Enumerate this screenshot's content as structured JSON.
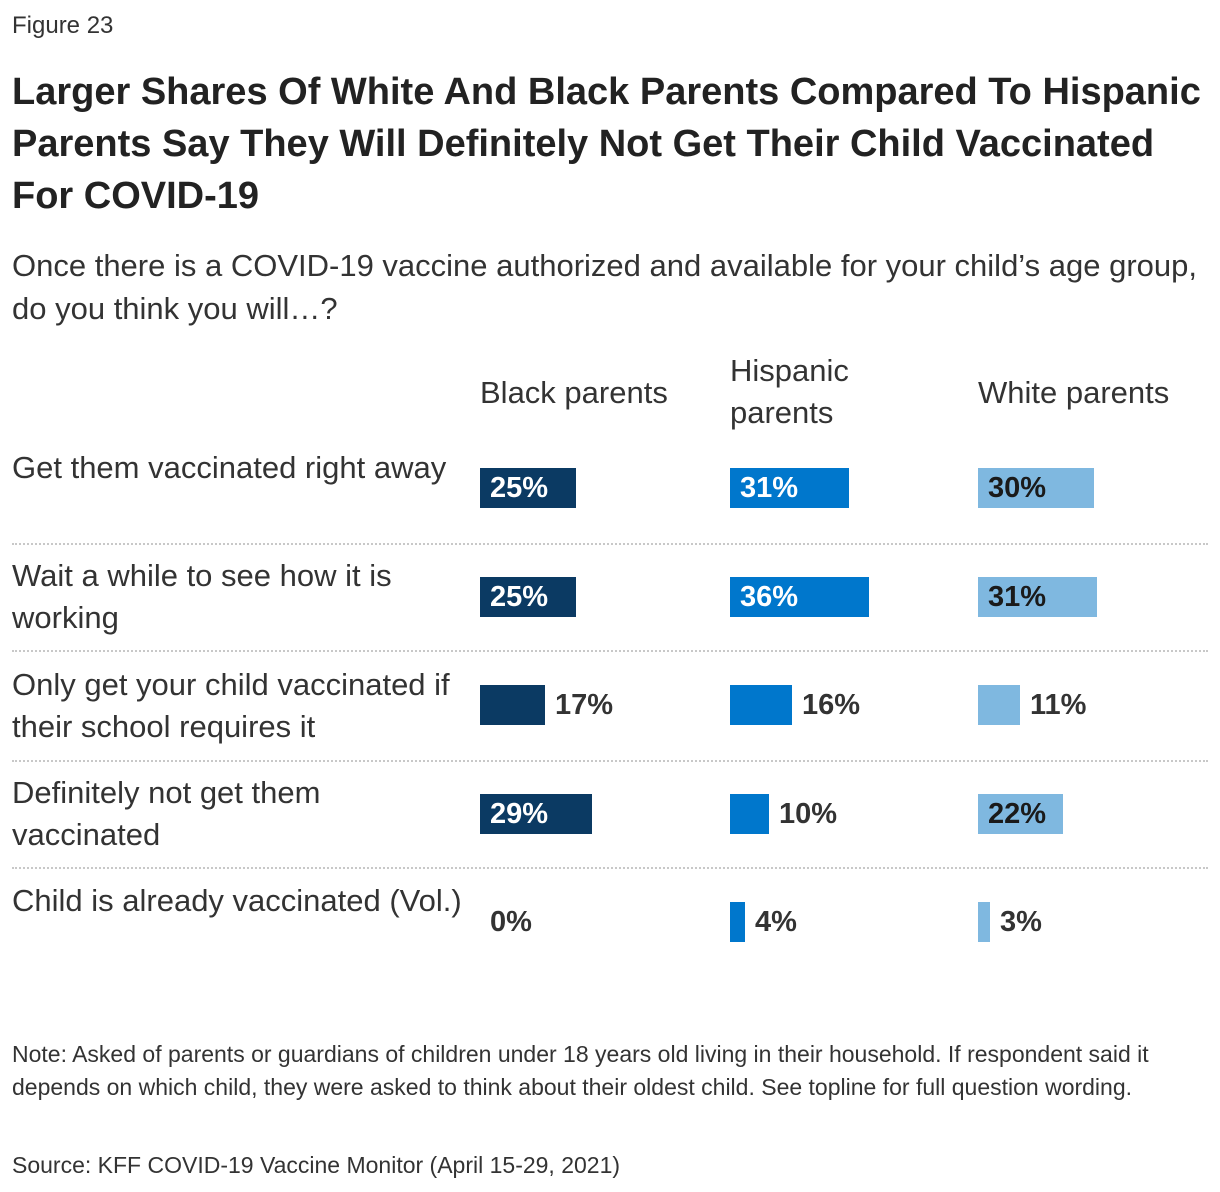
{
  "figure_label": "Figure 23",
  "title": "Larger Shares Of White And Black Parents Compared To Hispanic Parents Say They Will Definitely Not Get Their Child Vaccinated For COVID-19",
  "subtitle": "Once there is a COVID-19 vaccine authorized and available for your child’s age group, do you think you will…?",
  "colors": {
    "black_parents": "#0b3a63",
    "hispanic_parents": "#0077cc",
    "white_parents": "#7fb8e0"
  },
  "chart_data": {
    "type": "bar",
    "orientation": "horizontal",
    "title": "Larger Shares Of White And Black Parents Compared To Hispanic Parents Say They Will Definitely Not Get Their Child Vaccinated For COVID-19",
    "categories": [
      "Get them vaccinated right away",
      "Wait a while to see how it is working",
      "Only get your child vaccinated if their school requires it",
      "Definitely not get them vaccinated",
      "Child is already vaccinated (Vol.)"
    ],
    "series": [
      {
        "name": "Black parents",
        "values": [
          25,
          25,
          17,
          29,
          0
        ],
        "labels": [
          "25%",
          "25%",
          "17%",
          "29%",
          "0%"
        ]
      },
      {
        "name": "Hispanic parents",
        "values": [
          31,
          36,
          16,
          10,
          4
        ],
        "labels": [
          "31%",
          "36%",
          "16%",
          "10%",
          "4%"
        ]
      },
      {
        "name": "White parents",
        "values": [
          30,
          31,
          11,
          22,
          3
        ],
        "labels": [
          "30%",
          "31%",
          "11%",
          "22%",
          "3%"
        ]
      }
    ],
    "units": "%",
    "xlabel": "",
    "ylabel": ""
  },
  "note": "Note: Asked of parents or guardians of children under 18 years old living in their household. If respondent said it depends on which child, they were asked to think about their oldest child. See topline for full question wording.",
  "source": "Source: KFF COVID-19 Vaccine Monitor (April 15-29, 2021)"
}
